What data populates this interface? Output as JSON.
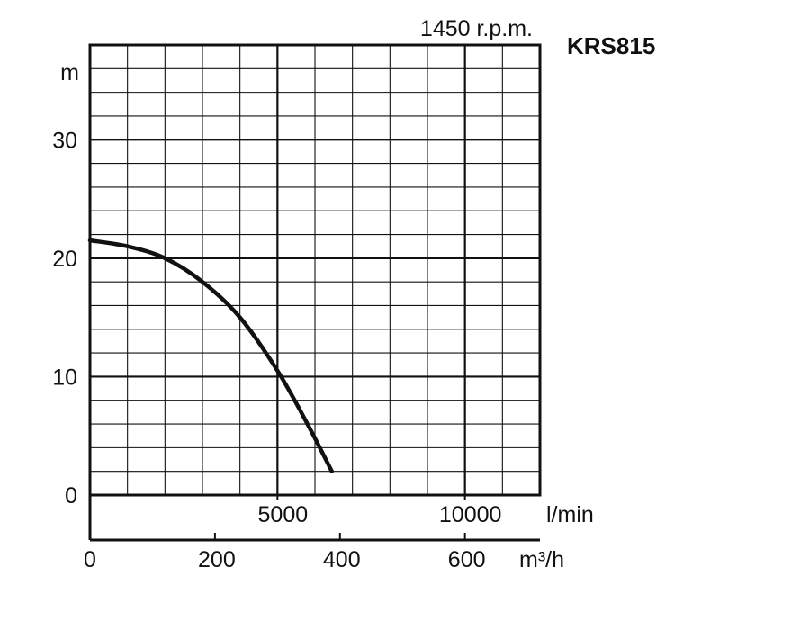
{
  "chart_data": {
    "type": "line",
    "speed_label": "1450 r.p.m.",
    "model": "KRS815",
    "y_unit": "m",
    "flow_unit_lmin": "l/min",
    "flow_unit_m3h": "m³/h",
    "ylim": [
      0,
      38
    ],
    "xlim_lmin": [
      0,
      12000
    ],
    "y_ticks": [
      {
        "value": 0,
        "label": "0"
      },
      {
        "value": 10,
        "label": "10"
      },
      {
        "value": 20,
        "label": "20"
      },
      {
        "value": 30,
        "label": "30"
      }
    ],
    "x_ticks_lmin": [
      {
        "value": 5000,
        "label": "5000"
      },
      {
        "value": 10000,
        "label": "10000"
      }
    ],
    "x_ticks_m3h": [
      {
        "value": 0,
        "label": "0"
      },
      {
        "value": 200,
        "label": "200"
      },
      {
        "value": 400,
        "label": "400"
      },
      {
        "value": 600,
        "label": "600"
      }
    ],
    "grid_minor_x_lmin": 1000,
    "grid_minor_y": 2,
    "grid_major_y": 10,
    "grid_major_x_lmin": 5000,
    "series": [
      {
        "x_lmin": [
          0,
          1000,
          2000,
          3000,
          4000,
          5000,
          5800,
          6450
        ],
        "y": [
          21.5,
          21.0,
          20.0,
          18.0,
          15.0,
          10.5,
          6.0,
          2.0
        ]
      }
    ]
  }
}
